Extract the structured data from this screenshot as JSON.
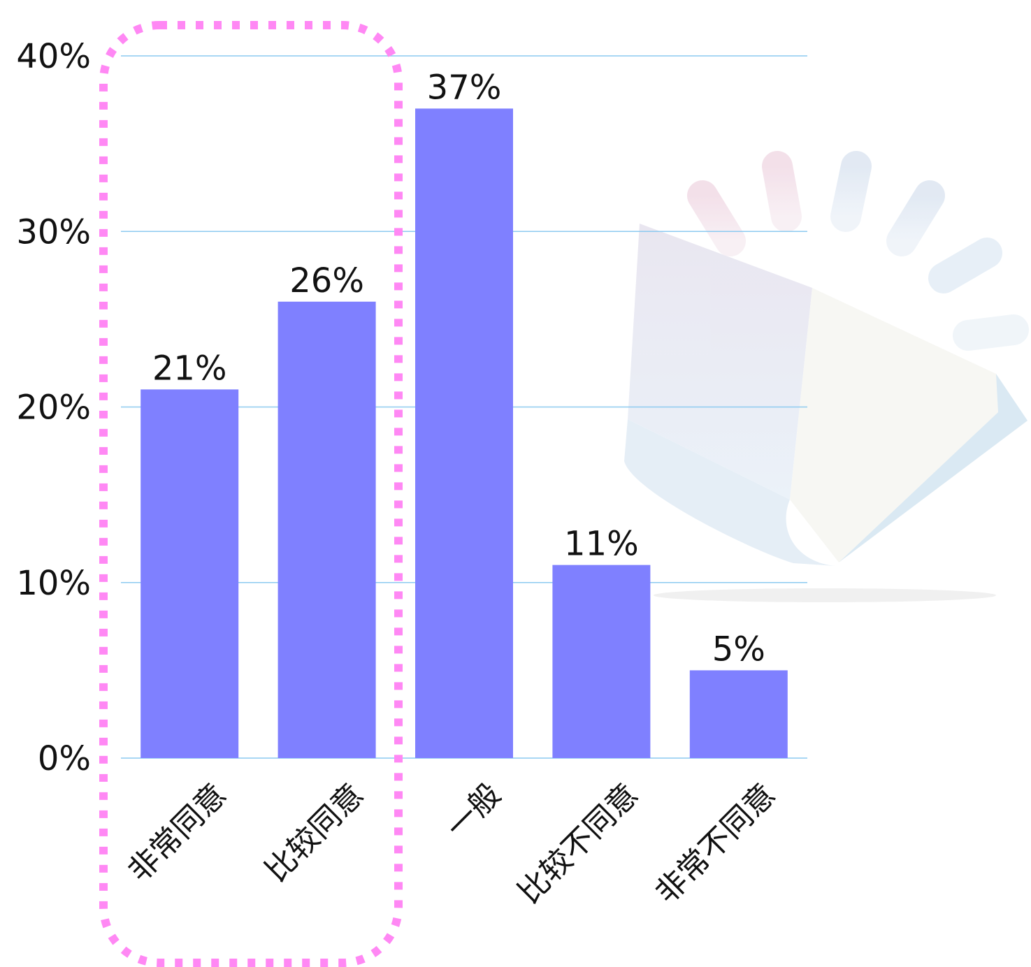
{
  "chart_data": {
    "type": "bar",
    "categories": [
      "非常同意",
      "比较同意",
      "一般",
      "比较不同意",
      "非常不同意"
    ],
    "values": [
      21,
      26,
      37,
      11,
      5
    ],
    "value_labels": [
      "21%",
      "26%",
      "37%",
      "11%",
      "5%"
    ],
    "y_ticks": [
      "0%",
      "10%",
      "20%",
      "30%",
      "40%"
    ],
    "y_tick_values": [
      0,
      10,
      20,
      30,
      40
    ],
    "ylim": [
      0,
      40
    ],
    "grid": true,
    "highlight": {
      "categories": [
        "非常同意",
        "比较同意"
      ],
      "style": "dotted",
      "color": "#ff88f4"
    },
    "colors": {
      "bar": "#7f80ff",
      "grid": "#8ccaf0",
      "highlight": "#ff88f4"
    },
    "decoration": "book-illustration"
  }
}
